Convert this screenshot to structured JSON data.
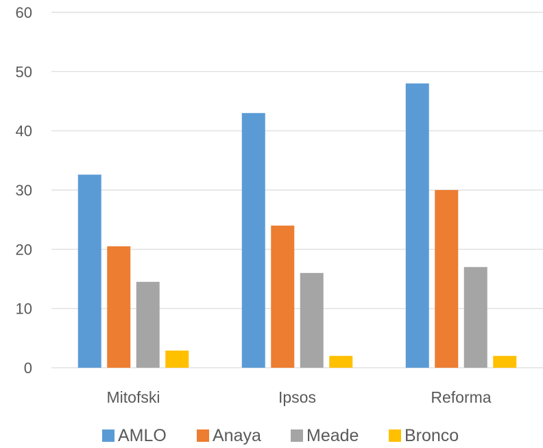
{
  "chart_data": {
    "type": "bar",
    "title": "",
    "xlabel": "",
    "ylabel": "",
    "categories": [
      "Mitofski",
      "Ipsos",
      "Reforma"
    ],
    "series": [
      {
        "name": "AMLO",
        "color": "#5b9bd5",
        "values": [
          32.6,
          43,
          48
        ]
      },
      {
        "name": "Anaya",
        "color": "#ed7d31",
        "values": [
          20.5,
          24,
          30
        ]
      },
      {
        "name": "Meade",
        "color": "#a5a5a5",
        "values": [
          14.5,
          16,
          17
        ]
      },
      {
        "name": "Bronco",
        "color": "#ffc000",
        "values": [
          2.9,
          2,
          2
        ]
      }
    ],
    "ylim": [
      0,
      60
    ],
    "yticks": [
      0,
      10,
      20,
      30,
      40,
      50,
      60
    ],
    "grid": true,
    "legend": "bottom-center"
  }
}
